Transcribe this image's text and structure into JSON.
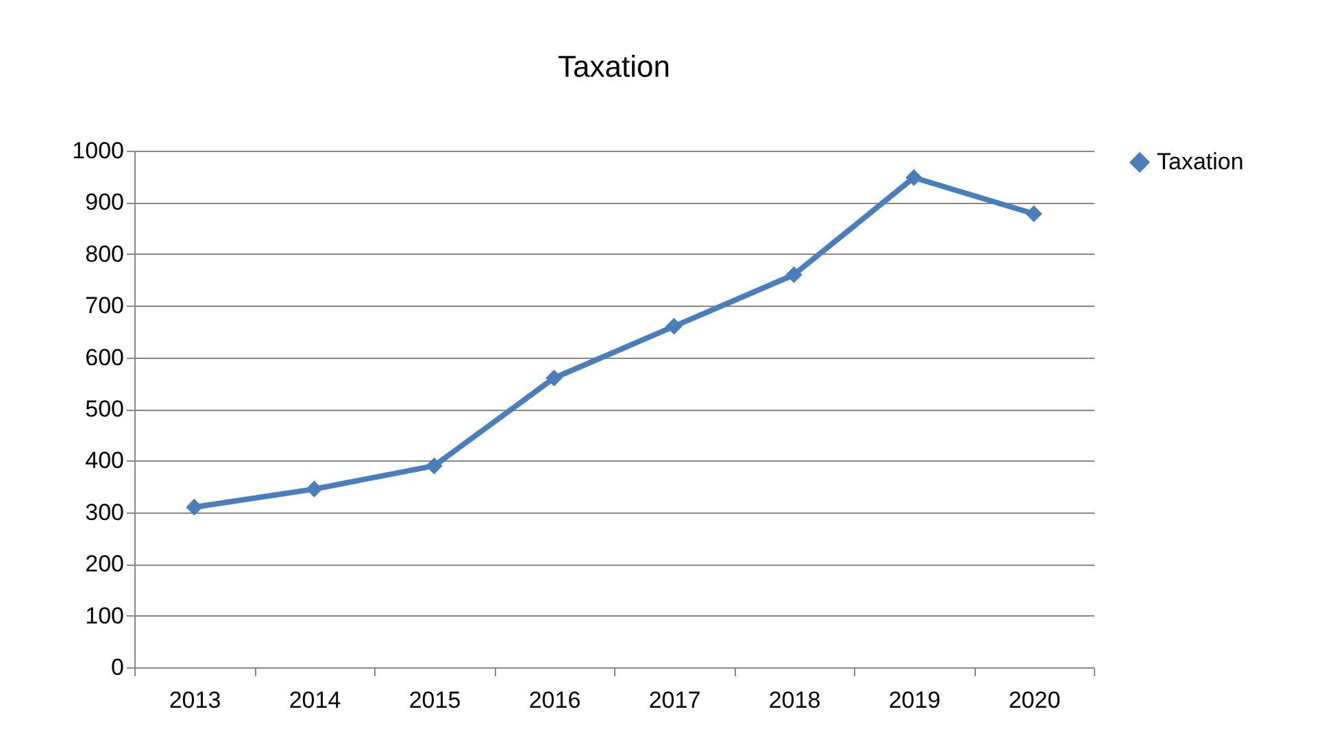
{
  "chart_data": {
    "type": "line",
    "title": "Taxation",
    "categories": [
      "2013",
      "2014",
      "2015",
      "2016",
      "2017",
      "2018",
      "2019",
      "2020"
    ],
    "series": [
      {
        "name": "Taxation",
        "color": "#4a7ebb",
        "values": [
          310,
          345,
          390,
          560,
          660,
          760,
          948,
          878
        ]
      }
    ],
    "ylim": [
      0,
      1000
    ],
    "yticks": [
      0,
      100,
      200,
      300,
      400,
      500,
      600,
      700,
      800,
      900,
      1000
    ],
    "grid": "y",
    "legend": "right",
    "marker": "diamond",
    "line_style": "solid"
  }
}
